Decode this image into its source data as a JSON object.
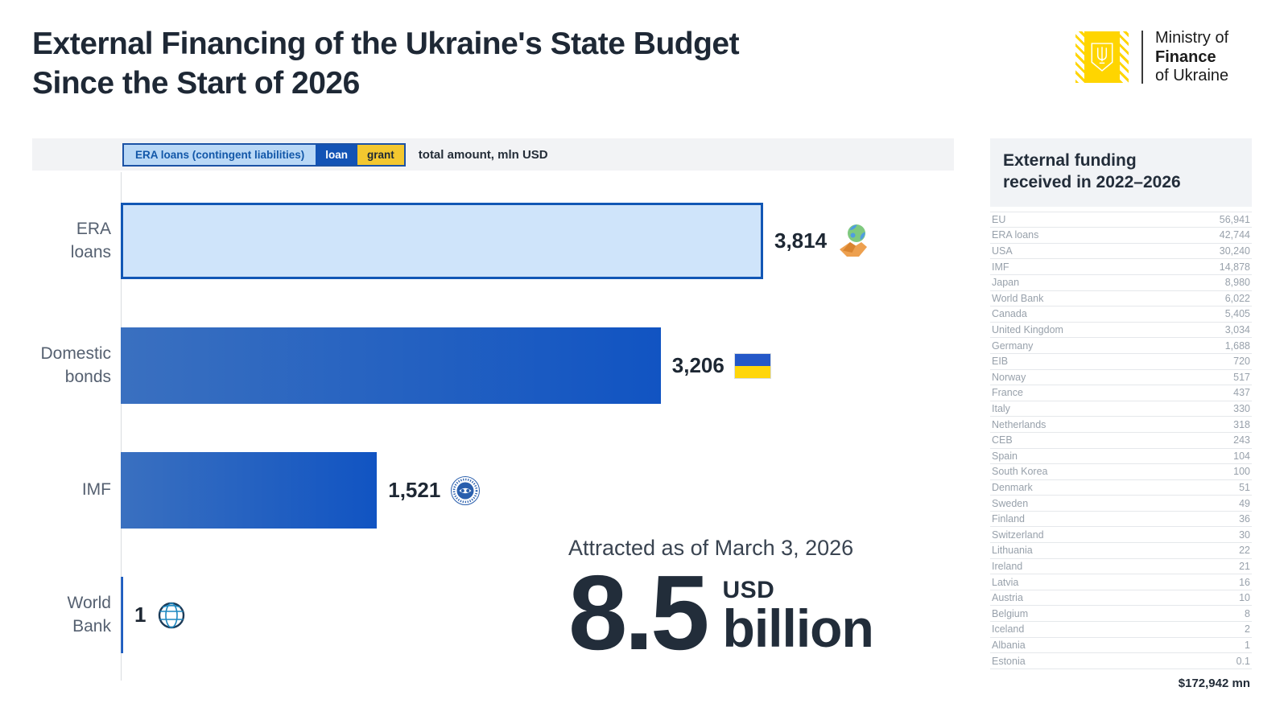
{
  "header": {
    "title_lines": [
      "External Financing of the Ukraine's State Budget",
      "Since the Start of 2026"
    ]
  },
  "logo": {
    "line1": "Ministry of",
    "line2": "Finance",
    "line3": "of Ukraine",
    "emblem": "ukraine-trident-icon",
    "brand_yellow": "#ffd500"
  },
  "chart_data": [
    {
      "type": "bar",
      "orientation": "horizontal",
      "title": "External Financing of the Ukraine's State Budget Since the Start of 2026",
      "note": "total amount, mln USD",
      "legend": [
        "ERA loans (contingent liabilities)",
        "loan",
        "grant"
      ],
      "legend_position": "top",
      "categories": [
        "ERA loans",
        "Domestic bonds",
        "IMF",
        "World Bank"
      ],
      "categories_lines": [
        [
          "ERA",
          "loans"
        ],
        [
          "Domestic",
          "bonds"
        ],
        [
          "IMF"
        ],
        [
          "World",
          "Bank"
        ]
      ],
      "values": [
        3814,
        3206,
        1521,
        1
      ],
      "value_labels": [
        "3,814",
        "3,206",
        "1,521",
        "1"
      ],
      "bar_styles": [
        "era",
        "solid",
        "solid",
        "solid"
      ],
      "icons": [
        "handshake-globe-icon",
        "ukraine-flag-icon",
        "imf-logo-icon",
        "world-bank-logo-icon"
      ],
      "xlim": [
        0,
        3814
      ],
      "grid": false,
      "colors": {
        "era_fill": "#cfe4fa",
        "era_border": "#1257b5",
        "loan_bar": "#1154c2",
        "loan_bar_light": "#3a70c0",
        "grant_yellow": "#f3c72f",
        "legend_era_bg": "#b9d8f6",
        "legend_loan_bg": "#1353b5"
      }
    },
    {
      "type": "table",
      "title": "External funding received in 2022–2026",
      "title_lines": [
        "External funding",
        "received in 2022–2026"
      ],
      "rows": [
        [
          "EU",
          "56,941"
        ],
        [
          "ERA loans",
          "42,744"
        ],
        [
          "USA",
          "30,240"
        ],
        [
          "IMF",
          "14,878"
        ],
        [
          "Japan",
          "8,980"
        ],
        [
          "World Bank",
          "6,022"
        ],
        [
          "Canada",
          "5,405"
        ],
        [
          "United Kingdom",
          "3,034"
        ],
        [
          "Germany",
          "1,688"
        ],
        [
          "EIB",
          "720"
        ],
        [
          "Norway",
          "517"
        ],
        [
          "France",
          "437"
        ],
        [
          "Italy",
          "330"
        ],
        [
          "Netherlands",
          "318"
        ],
        [
          "CEB",
          "243"
        ],
        [
          "Spain",
          "104"
        ],
        [
          "South Korea",
          "100"
        ],
        [
          "Denmark",
          "51"
        ],
        [
          "Sweden",
          "49"
        ],
        [
          "Finland",
          "36"
        ],
        [
          "Switzerland",
          "30"
        ],
        [
          "Lithuania",
          "22"
        ],
        [
          "Ireland",
          "21"
        ],
        [
          "Latvia",
          "16"
        ],
        [
          "Austria",
          "10"
        ],
        [
          "Belgium",
          "8"
        ],
        [
          "Iceland",
          "2"
        ],
        [
          "Albania",
          "1"
        ],
        [
          "Estonia",
          "0.1"
        ]
      ],
      "total": "$172,942 mn"
    }
  ],
  "highlight": {
    "caption": "Attracted as of March 3, 2026",
    "value": "8.5",
    "currency": "USD",
    "unit": "billion"
  }
}
